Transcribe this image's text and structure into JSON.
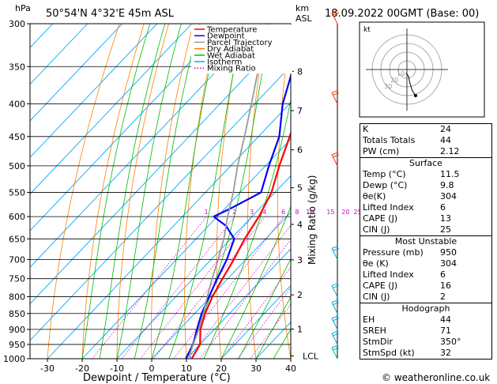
{
  "header": {
    "hpa_unit": "hPa",
    "location": "50°54'N  4°32'E  45m  ASL",
    "km_unit": "km",
    "asl_unit": "ASL",
    "datetime": "18.09.2022  00GMT  (Base: 00)"
  },
  "footer": {
    "credit": "© weatheronline.co.uk"
  },
  "chart_data": {
    "type": "line",
    "title": "",
    "xlabel": "Dewpoint / Temperature (°C)",
    "ylabel": "hPa",
    "mixing_ratio_axis_label": "Mixing Ratio (g/kg)",
    "xlim": [
      -35,
      40
    ],
    "ylim": [
      1000,
      300
    ],
    "x_ticks": [
      -30,
      -20,
      -10,
      0,
      10,
      20,
      30,
      40
    ],
    "pressure_levels": [
      300,
      350,
      400,
      450,
      500,
      550,
      600,
      650,
      700,
      750,
      800,
      850,
      900,
      950,
      1000
    ],
    "km_ticks": [
      {
        "p": 356,
        "label": "8"
      },
      {
        "p": 410,
        "label": "7"
      },
      {
        "p": 472,
        "label": "6"
      },
      {
        "p": 541,
        "label": "5"
      },
      {
        "p": 617,
        "label": "4"
      },
      {
        "p": 701,
        "label": "3"
      },
      {
        "p": 795,
        "label": "2"
      },
      {
        "p": 899,
        "label": "1"
      }
    ],
    "lcl_label": "LCL",
    "lcl_pressure": 990,
    "mixing_ratio_labels": [
      "1",
      "2",
      "3",
      "4",
      "6",
      "8",
      "10",
      "15",
      "20",
      "25"
    ],
    "mixing_ratio_values": [
      1,
      2,
      3,
      4,
      6,
      8,
      10,
      15,
      20,
      25
    ],
    "legend": [
      {
        "name": "Temperature",
        "color": "#ff0000",
        "style": "solid"
      },
      {
        "name": "Dewpoint",
        "color": "#0000ff",
        "style": "solid"
      },
      {
        "name": "Parcel Trajectory",
        "color": "#999999",
        "style": "solid"
      },
      {
        "name": "Dry Adiabat",
        "color": "#ff8000",
        "style": "solid"
      },
      {
        "name": "Wet Adiabat",
        "color": "#00bb00",
        "style": "solid"
      },
      {
        "name": "Isotherm",
        "color": "#00aaff",
        "style": "solid"
      },
      {
        "name": "Mixing Ratio",
        "color": "#cc00cc",
        "style": "dotted"
      }
    ],
    "series": [
      {
        "name": "Temperature",
        "color": "#ff0000",
        "points": [
          {
            "p": 1000,
            "t": 11.5
          },
          {
            "p": 950,
            "t": 10
          },
          {
            "p": 900,
            "t": 6
          },
          {
            "p": 850,
            "t": 3
          },
          {
            "p": 800,
            "t": 0.5
          },
          {
            "p": 750,
            "t": -1.5
          },
          {
            "p": 700,
            "t": -3.5
          },
          {
            "p": 650,
            "t": -6
          },
          {
            "p": 600,
            "t": -8
          },
          {
            "p": 550,
            "t": -11
          },
          {
            "p": 500,
            "t": -16
          },
          {
            "p": 450,
            "t": -21
          },
          {
            "p": 400,
            "t": -27
          },
          {
            "p": 350,
            "t": -35
          },
          {
            "p": 300,
            "t": -44
          }
        ]
      },
      {
        "name": "Dewpoint",
        "color": "#0000ff",
        "points": [
          {
            "p": 1000,
            "t": 9.8
          },
          {
            "p": 950,
            "t": 8
          },
          {
            "p": 900,
            "t": 5
          },
          {
            "p": 850,
            "t": 2
          },
          {
            "p": 800,
            "t": -0.5
          },
          {
            "p": 750,
            "t": -3
          },
          {
            "p": 700,
            "t": -5.5
          },
          {
            "p": 650,
            "t": -9
          },
          {
            "p": 620,
            "t": -15
          },
          {
            "p": 600,
            "t": -21
          },
          {
            "p": 580,
            "t": -18
          },
          {
            "p": 550,
            "t": -14
          },
          {
            "p": 500,
            "t": -19
          },
          {
            "p": 450,
            "t": -24
          },
          {
            "p": 400,
            "t": -32
          },
          {
            "p": 350,
            "t": -39
          },
          {
            "p": 300,
            "t": -48
          }
        ]
      },
      {
        "name": "Parcel Trajectory",
        "color": "#999999",
        "points": [
          {
            "p": 1000,
            "t": 11.5
          },
          {
            "p": 990,
            "t": 10
          },
          {
            "p": 900,
            "t": 5.5
          },
          {
            "p": 850,
            "t": 2.5
          },
          {
            "p": 800,
            "t": -1
          },
          {
            "p": 750,
            "t": -4.5
          },
          {
            "p": 700,
            "t": -8
          },
          {
            "p": 650,
            "t": -12
          },
          {
            "p": 600,
            "t": -17
          },
          {
            "p": 550,
            "t": -22
          },
          {
            "p": 500,
            "t": -28
          },
          {
            "p": 450,
            "t": -34
          },
          {
            "p": 400,
            "t": -41
          },
          {
            "p": 350,
            "t": -49
          },
          {
            "p": 300,
            "t": -58
          }
        ]
      }
    ],
    "wind_barbs_pressures": [
      300,
      400,
      500,
      700,
      800,
      850,
      900,
      950,
      1000
    ],
    "hodograph": {
      "label": "kt",
      "rings_kt": [
        10,
        20,
        30,
        40
      ],
      "ring_labels": [
        "10",
        "20",
        "30"
      ],
      "points": [
        {
          "u": -1,
          "v": -4
        },
        {
          "u": 2,
          "v": -8
        },
        {
          "u": 3,
          "v": -14
        },
        {
          "u": 6,
          "v": -24
        },
        {
          "u": 10,
          "v": -30
        }
      ]
    }
  },
  "indices": {
    "rows": [
      {
        "label": "K",
        "value": "24"
      },
      {
        "label": "Totals Totals",
        "value": "44"
      },
      {
        "label": "PW (cm)",
        "value": "2.12"
      }
    ],
    "surface": {
      "title": "Surface",
      "rows": [
        {
          "label": "Temp (°C)",
          "value": "11.5"
        },
        {
          "label": "Dewp (°C)",
          "value": "9.8"
        },
        {
          "label": "θe(K)",
          "value": "304"
        },
        {
          "label": "Lifted Index",
          "value": "6"
        },
        {
          "label": "CAPE (J)",
          "value": "13"
        },
        {
          "label": "CIN (J)",
          "value": "25"
        }
      ]
    },
    "most_unstable": {
      "title": "Most Unstable",
      "rows": [
        {
          "label": "Pressure (mb)",
          "value": "950"
        },
        {
          "label": "θe (K)",
          "value": "304"
        },
        {
          "label": "Lifted Index",
          "value": "6"
        },
        {
          "label": "CAPE (J)",
          "value": "16"
        },
        {
          "label": "CIN (J)",
          "value": "2"
        }
      ]
    },
    "hodograph": {
      "title": "Hodograph",
      "rows": [
        {
          "label": "EH",
          "value": "44"
        },
        {
          "label": "SREH",
          "value": "71"
        },
        {
          "label": "StmDir",
          "value": "350°"
        },
        {
          "label": "StmSpd (kt)",
          "value": "32"
        }
      ]
    }
  }
}
